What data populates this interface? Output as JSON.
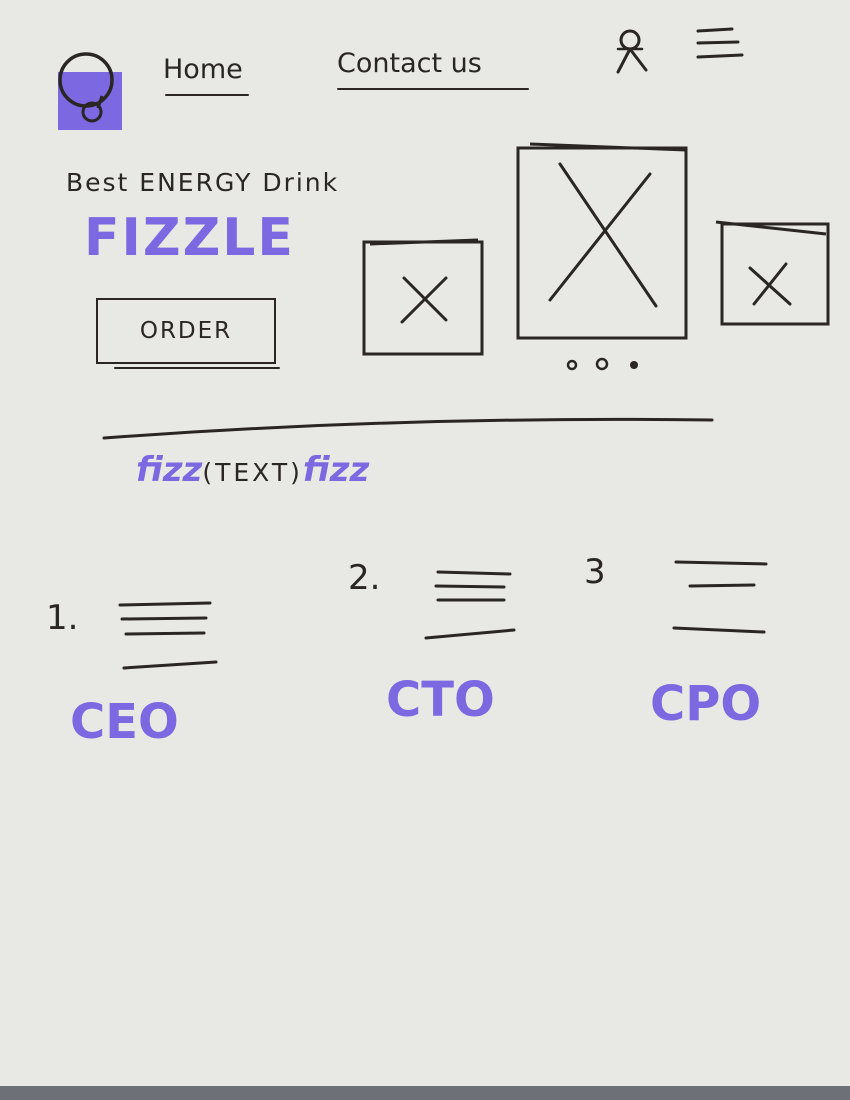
{
  "colors": {
    "ink": "#2a2624",
    "accent": "#7c68e0",
    "paper": "#e8e9e4"
  },
  "header": {
    "logo_icon": "logo-circle-icon",
    "nav": [
      {
        "label": "Home"
      },
      {
        "label": "Contact us"
      }
    ],
    "user_icon": "user-icon",
    "menu_icon": "hamburger-menu-icon"
  },
  "hero": {
    "tagline": "Best ENERGY Drink",
    "brand": "FIZZLE",
    "order_label": "ORDER",
    "carousel": {
      "image_icon": "image-placeholder-icon",
      "image_count": 3,
      "dots_count": 3
    }
  },
  "section": {
    "title_left": "fizz",
    "title_middle": "(TEXT)",
    "title_right": "fizz",
    "team": [
      {
        "number": "1.",
        "role": "CEO"
      },
      {
        "number": "2.",
        "role": "CTO"
      },
      {
        "number": "3",
        "role": "CPO"
      }
    ]
  }
}
